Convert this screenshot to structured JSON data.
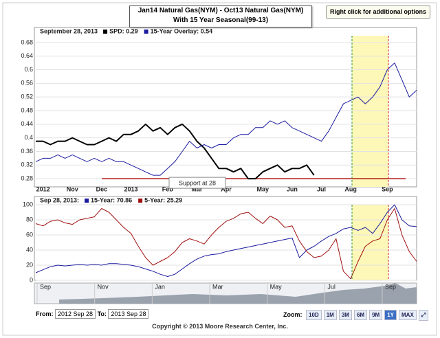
{
  "chart_data": [
    {
      "type": "line",
      "title": "Jan14 Natural Gas(NYM) - Oct13 Natural Gas(NYM)",
      "subtitle": "With 15 Year Seasonal(99-13)",
      "legend_title": "September 28, 2013",
      "categories": [
        null,
        "2012",
        null,
        null,
        null,
        "Nov",
        null,
        null,
        null,
        "Dec",
        null,
        null,
        null,
        "2013",
        null,
        null,
        null,
        null,
        "Feb",
        null,
        null,
        null,
        "Mar",
        null,
        null,
        null,
        "Apr",
        null,
        null,
        null,
        null,
        "May",
        null,
        null,
        null,
        "Jun",
        null,
        null,
        null,
        "Jul",
        null,
        null,
        null,
        "Aug",
        null,
        null,
        null,
        null,
        "Sep",
        null,
        null,
        null,
        null
      ],
      "series": [
        {
          "name": "SPD: 0.29",
          "color": "#000000",
          "width": 2,
          "values": [
            0.39,
            0.39,
            0.38,
            0.39,
            0.39,
            0.4,
            0.39,
            0.38,
            0.38,
            0.39,
            0.4,
            0.39,
            0.41,
            0.41,
            0.42,
            0.44,
            0.42,
            0.43,
            0.41,
            0.43,
            0.44,
            0.42,
            0.39,
            0.37,
            0.34,
            0.31,
            0.31,
            0.3,
            0.31,
            0.28,
            0.28,
            0.3,
            0.31,
            0.32,
            0.3,
            0.31,
            0.31,
            0.32,
            0.29,
            null,
            null,
            null,
            null,
            null,
            null,
            null,
            null,
            null,
            null,
            null,
            null,
            null,
            null
          ]
        },
        {
          "name": "15-Year Overlay: 0.54",
          "color": "#1a1aa0",
          "width": 1,
          "values": [
            0.33,
            0.34,
            0.34,
            0.35,
            0.34,
            0.35,
            0.34,
            0.33,
            0.34,
            0.33,
            0.34,
            0.33,
            0.33,
            0.32,
            0.31,
            0.3,
            0.29,
            0.29,
            0.31,
            0.33,
            0.36,
            0.39,
            0.37,
            0.38,
            0.37,
            0.38,
            0.38,
            0.4,
            0.41,
            0.41,
            0.43,
            0.43,
            0.45,
            0.44,
            0.45,
            0.43,
            0.42,
            0.41,
            0.4,
            0.39,
            0.42,
            0.46,
            0.5,
            0.51,
            0.52,
            0.5,
            0.52,
            0.55,
            0.6,
            0.62,
            0.57,
            0.52,
            0.54
          ]
        }
      ],
      "support": {
        "value": 0.28,
        "label": "Support at 28",
        "color": "#b01010"
      },
      "ylim": [
        0.26,
        0.7
      ],
      "yticks": [
        0.28,
        0.32,
        0.36,
        0.4,
        0.44,
        0.48,
        0.52,
        0.56,
        0.6,
        0.64,
        0.68
      ],
      "grid": true
    },
    {
      "type": "line",
      "legend_title": "Sep 28, 2013:",
      "series": [
        {
          "name": "15-Year: 70.86",
          "color": "#1a1aa0",
          "width": 1,
          "values": [
            10,
            14,
            18,
            20,
            19,
            20,
            21,
            20,
            21,
            20,
            22,
            22,
            21,
            20,
            18,
            15,
            12,
            8,
            5,
            8,
            15,
            22,
            28,
            32,
            34,
            35,
            38,
            40,
            42,
            44,
            46,
            48,
            50,
            52,
            54,
            56,
            30,
            40,
            45,
            52,
            58,
            62,
            68,
            70,
            66,
            70,
            62,
            75,
            90,
            100,
            80,
            72,
            71
          ]
        },
        {
          "name": "5-Year: 25.29",
          "color": "#a01010",
          "width": 1,
          "values": [
            75,
            72,
            78,
            80,
            76,
            74,
            80,
            82,
            84,
            95,
            90,
            80,
            70,
            62,
            45,
            30,
            20,
            25,
            30,
            38,
            50,
            55,
            52,
            48,
            60,
            70,
            78,
            82,
            88,
            90,
            82,
            75,
            85,
            80,
            70,
            72,
            52,
            38,
            30,
            32,
            40,
            55,
            12,
            2,
            25,
            45,
            52,
            55,
            80,
            95,
            60,
            38,
            25
          ]
        }
      ],
      "ylim": [
        0,
        100
      ],
      "yticks": [
        0,
        20,
        40,
        60,
        80,
        100
      ],
      "grid": true
    }
  ],
  "ui": {
    "options_button": "Right click for additional options",
    "navigator_labels": [
      "Sep",
      "Nov",
      "Jan",
      "Mar",
      "May",
      "Jul",
      "Sep"
    ],
    "from_label": "From:",
    "from_value": "2012 Sep 28",
    "to_label": "To:",
    "to_value": "2013 Sep 28",
    "zoom_label": "Zoom:",
    "zoom_buttons": [
      "10D",
      "1M",
      "3M",
      "6M",
      "9M",
      "1Y",
      "MAX"
    ],
    "zoom_active": "1Y",
    "copyright": "Copyright © 2013 Moore Research Center, Inc."
  }
}
